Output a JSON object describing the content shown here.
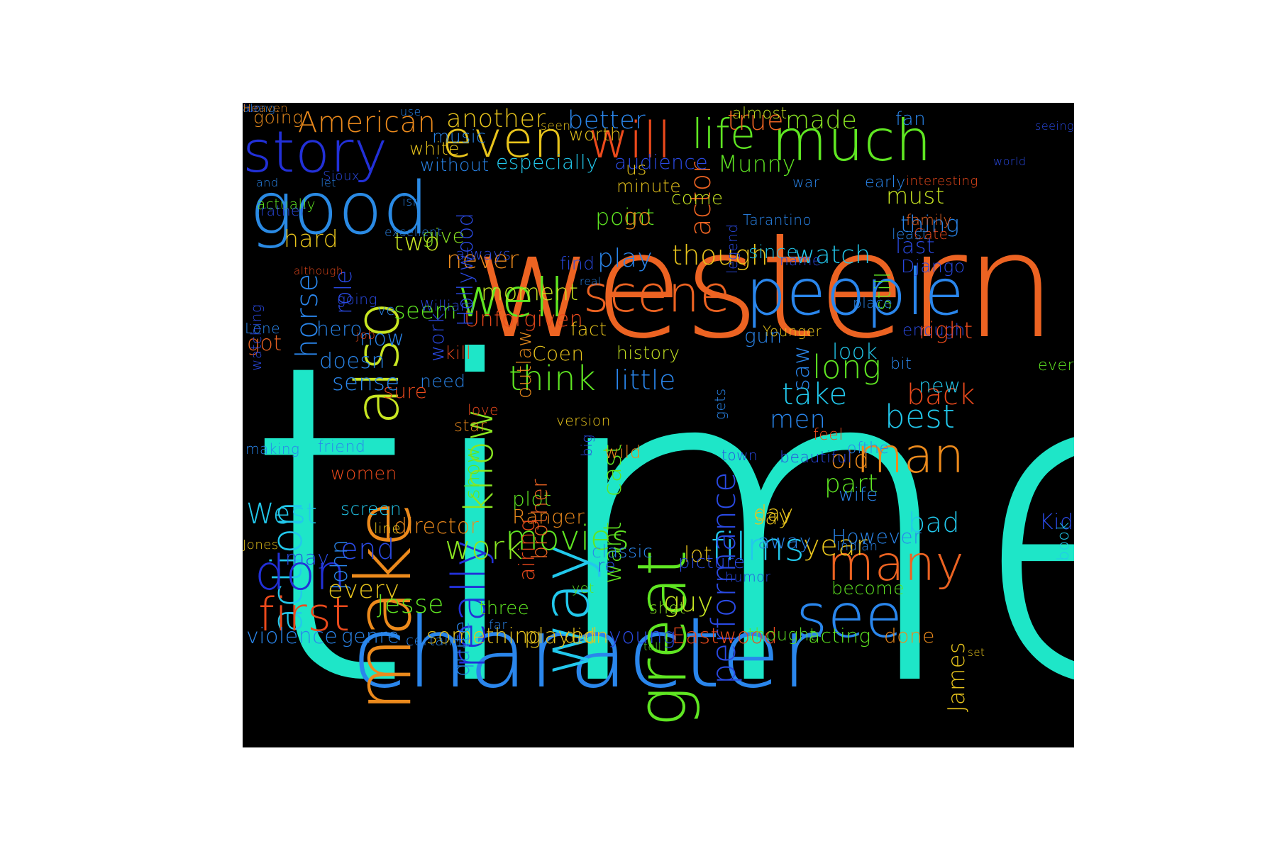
{
  "word_cloud": {
    "background": "#000000",
    "words": [
      {
        "text": "time",
        "color": "#1ee6c8"
      },
      {
        "text": "western",
        "color": "#ec6322"
      },
      {
        "text": "character",
        "color": "#2a86ec"
      },
      {
        "text": "good",
        "color": "#2a8ae4"
      },
      {
        "text": "story",
        "color": "#2230d8"
      },
      {
        "text": "even",
        "color": "#e8c41c"
      },
      {
        "text": "will",
        "color": "#ec4a1c"
      },
      {
        "text": "life",
        "color": "#5fe622"
      },
      {
        "text": "much",
        "color": "#5fe622"
      },
      {
        "text": "scene",
        "color": "#ec6322"
      },
      {
        "text": "people",
        "color": "#2a86ec"
      },
      {
        "text": "well",
        "color": "#5fe622"
      },
      {
        "text": "make",
        "color": "#ec8a1c"
      },
      {
        "text": "great",
        "color": "#5fe622"
      },
      {
        "text": "way",
        "color": "#22c8ec"
      },
      {
        "text": "really",
        "color": "#2230d8"
      },
      {
        "text": "know",
        "color": "#8ae622"
      },
      {
        "text": "action",
        "color": "#22c8ec"
      },
      {
        "text": "also",
        "color": "#c8e622"
      },
      {
        "text": "see",
        "color": "#2a86ec"
      },
      {
        "text": "man",
        "color": "#ec8a1c"
      },
      {
        "text": "many",
        "color": "#ec6322"
      },
      {
        "text": "first",
        "color": "#ec4a1c"
      },
      {
        "text": "don",
        "color": "#2230d8"
      },
      {
        "text": "films",
        "color": "#22c8ec"
      },
      {
        "text": "movies",
        "color": "#5fe622"
      },
      {
        "text": "performance",
        "color": "#2a4ae4"
      },
      {
        "text": "American",
        "color": "#ec8a1c"
      },
      {
        "text": "another",
        "color": "#e8c41c"
      },
      {
        "text": "better",
        "color": "#2a86ec"
      },
      {
        "text": "true",
        "color": "#ec6322"
      },
      {
        "text": "made",
        "color": "#8ae622"
      },
      {
        "text": "fan",
        "color": "#2a86ec"
      },
      {
        "text": "going",
        "color": "#e88a1c"
      },
      {
        "text": "actor",
        "color": "#ec6322"
      },
      {
        "text": "almost",
        "color": "#c8e622"
      },
      {
        "text": "though",
        "color": "#e8c41c"
      },
      {
        "text": "watch",
        "color": "#22c8ec"
      },
      {
        "text": "since",
        "color": "#22c8ec"
      },
      {
        "text": "play",
        "color": "#2a86ec"
      },
      {
        "text": "never",
        "color": "#ec8a1c"
      },
      {
        "text": "two",
        "color": "#c8e622"
      },
      {
        "text": "hard",
        "color": "#e8c41c"
      },
      {
        "text": "horse",
        "color": "#2a86ec"
      },
      {
        "text": "role",
        "color": "#2a4ae4"
      },
      {
        "text": "seem",
        "color": "#5fe622"
      },
      {
        "text": "now",
        "color": "#2a86ec"
      },
      {
        "text": "doesn",
        "color": "#2a86ec"
      },
      {
        "text": "think",
        "color": "#5fe622"
      },
      {
        "text": "little",
        "color": "#2a86ec"
      },
      {
        "text": "history",
        "color": "#c8e622"
      },
      {
        "text": "Coen",
        "color": "#e8c41c"
      },
      {
        "text": "long",
        "color": "#5fe622"
      },
      {
        "text": "take",
        "color": "#22c8ec"
      },
      {
        "text": "best",
        "color": "#22c8ec"
      },
      {
        "text": "back",
        "color": "#ec4a1c"
      },
      {
        "text": "new",
        "color": "#22c8ec"
      },
      {
        "text": "men",
        "color": "#2a86ec"
      },
      {
        "text": "old",
        "color": "#ec8a1c"
      },
      {
        "text": "part",
        "color": "#5fe622"
      },
      {
        "text": "West",
        "color": "#22c8ec"
      },
      {
        "text": "end",
        "color": "#2a4ae4"
      },
      {
        "text": "John",
        "color": "#2a86ec"
      },
      {
        "text": "director",
        "color": "#ec8a1c"
      },
      {
        "text": "work",
        "color": "#8ae622"
      },
      {
        "text": "Ranger",
        "color": "#ec8a1c"
      },
      {
        "text": "plot",
        "color": "#5fe622"
      },
      {
        "text": "brother",
        "color": "#ec6322"
      },
      {
        "text": "want",
        "color": "#5fe622"
      },
      {
        "text": "cast",
        "color": "#5fe622"
      },
      {
        "text": "day",
        "color": "#e8c41c"
      },
      {
        "text": "say",
        "color": "#e8c41c"
      },
      {
        "text": "year",
        "color": "#e8c41c"
      },
      {
        "text": "away",
        "color": "#2a86ec"
      },
      {
        "text": "However",
        "color": "#2a86ec"
      },
      {
        "text": "bad",
        "color": "#22c8ec"
      },
      {
        "text": "lot",
        "color": "#e8c41c"
      },
      {
        "text": "guy",
        "color": "#c8e622"
      },
      {
        "text": "every",
        "color": "#e8c41c"
      },
      {
        "text": "Jesse",
        "color": "#5fe622"
      },
      {
        "text": "three",
        "color": "#5fe622"
      },
      {
        "text": "violence",
        "color": "#2a86ec"
      },
      {
        "text": "genre",
        "color": "#2a86ec"
      },
      {
        "text": "something",
        "color": "#e8c41c"
      },
      {
        "text": "played",
        "color": "#e8c41c"
      },
      {
        "text": "didn",
        "color": "#e8c41c"
      },
      {
        "text": "young",
        "color": "#2a4ae4"
      },
      {
        "text": "Eastwood",
        "color": "#ec4a1c"
      },
      {
        "text": "thought",
        "color": "#5fe622"
      },
      {
        "text": "acting",
        "color": "#5fe622"
      },
      {
        "text": "done",
        "color": "#ec8a1c"
      },
      {
        "text": "James",
        "color": "#e8c41c"
      },
      {
        "text": "Munny",
        "color": "#5fe622"
      },
      {
        "text": "audience",
        "color": "#2a4ae4"
      },
      {
        "text": "especially",
        "color": "#22c8ec"
      },
      {
        "text": "without",
        "color": "#2a86ec"
      },
      {
        "text": "music",
        "color": "#2a86ec"
      },
      {
        "text": "white",
        "color": "#e8c41c"
      },
      {
        "text": "worth",
        "color": "#e8c41c"
      },
      {
        "text": "us",
        "color": "#e8c41c"
      },
      {
        "text": "point",
        "color": "#5fe622"
      },
      {
        "text": "come",
        "color": "#c8e622"
      },
      {
        "text": "minute",
        "color": "#e8c41c"
      },
      {
        "text": "go",
        "color": "#ec8a1c"
      },
      {
        "text": "must",
        "color": "#c8e622"
      },
      {
        "text": "thing",
        "color": "#2a86ec"
      },
      {
        "text": "last",
        "color": "#2a4ae4"
      },
      {
        "text": "Django",
        "color": "#2a4ae4"
      },
      {
        "text": "still",
        "color": "#5fe622"
      },
      {
        "text": "find",
        "color": "#2a4ae4"
      },
      {
        "text": "always",
        "color": "#2a4ae4"
      },
      {
        "text": "give",
        "color": "#8ae622"
      },
      {
        "text": "moment",
        "color": "#c8e622"
      },
      {
        "text": "Unforgiven",
        "color": "#ec4a1c"
      },
      {
        "text": "outlaw",
        "color": "#e88a1c"
      },
      {
        "text": "fact",
        "color": "#e8c41c"
      },
      {
        "text": "gun",
        "color": "#2a86ec"
      },
      {
        "text": "saw",
        "color": "#2a86ec"
      },
      {
        "text": "enough",
        "color": "#2a4ae4"
      },
      {
        "text": "right",
        "color": "#ec4a1c"
      },
      {
        "text": "look",
        "color": "#22c8ec"
      },
      {
        "text": "bit",
        "color": "#2a86ec"
      },
      {
        "text": "ever",
        "color": "#5fe622"
      },
      {
        "text": "feel",
        "color": "#ec4a1c"
      },
      {
        "text": "ofthe",
        "color": "#2a86ec"
      },
      {
        "text": "beautiful",
        "color": "#2a4ae4"
      },
      {
        "text": "wife",
        "color": "#2a86ec"
      },
      {
        "text": "Kid",
        "color": "#2a4ae4"
      },
      {
        "text": "book",
        "color": "#22c8ec"
      },
      {
        "text": "Indian",
        "color": "#2a86ec"
      },
      {
        "text": "classic",
        "color": "#2a86ec"
      },
      {
        "text": "re",
        "color": "#2a4ae4"
      },
      {
        "text": "picture",
        "color": "#2a4ae4"
      },
      {
        "text": "humor",
        "color": "#2a4ae4"
      },
      {
        "text": "become",
        "color": "#5fe622"
      },
      {
        "text": "yet",
        "color": "#5fe622"
      },
      {
        "text": "shot",
        "color": "#8ae622"
      },
      {
        "text": "far",
        "color": "#2a86ec"
      },
      {
        "text": "quite",
        "color": "#2a86ec"
      },
      {
        "text": "certainly",
        "color": "#2a86ec"
      },
      {
        "text": "set",
        "color": "#e8c41c"
      },
      {
        "text": "tell",
        "color": "#5fe622"
      },
      {
        "text": "may",
        "color": "#2a4ae4"
      },
      {
        "text": "Jones",
        "color": "#e8c41c"
      },
      {
        "text": "line",
        "color": "#e8c41c"
      },
      {
        "text": "airing",
        "color": "#ec4a1c"
      },
      {
        "text": "screen",
        "color": "#22c8ec"
      },
      {
        "text": "women",
        "color": "#ec4a1c"
      },
      {
        "text": "friend",
        "color": "#2a86ec"
      },
      {
        "text": "making",
        "color": "#2a86ec"
      },
      {
        "text": "show",
        "color": "#5fe622"
      },
      {
        "text": "star",
        "color": "#ec8a1c"
      },
      {
        "text": "love",
        "color": "#ec4a1c"
      },
      {
        "text": "version",
        "color": "#e8c41c"
      },
      {
        "text": "wild",
        "color": "#ec8a1c"
      },
      {
        "text": "big",
        "color": "#2a4ae4"
      },
      {
        "text": "town",
        "color": "#2a4ae4"
      },
      {
        "text": "gets",
        "color": "#2a86ec"
      },
      {
        "text": "Younger",
        "color": "#e8c41c"
      },
      {
        "text": "sure",
        "color": "#ec4a1c"
      },
      {
        "text": "sense",
        "color": "#2a86ec"
      },
      {
        "text": "need",
        "color": "#2a86ec"
      },
      {
        "text": "hero",
        "color": "#2a86ec"
      },
      {
        "text": "Lone",
        "color": "#2a86ec"
      },
      {
        "text": "ve",
        "color": "#2a86ec"
      },
      {
        "text": "going",
        "color": "#2a4ae4"
      },
      {
        "text": "got",
        "color": "#ec6322"
      },
      {
        "text": "watching",
        "color": "#2a4ae4"
      },
      {
        "text": "William",
        "color": "#2a4ae4"
      },
      {
        "text": "although",
        "color": "#ec4a1c"
      },
      {
        "text": "actually",
        "color": "#5fe622"
      },
      {
        "text": "job",
        "color": "#ec4a1c"
      },
      {
        "text": "excellent",
        "color": "#2a86ec"
      },
      {
        "text": "isn",
        "color": "#2a86ec"
      },
      {
        "text": "rather",
        "color": "#2a4ae4"
      },
      {
        "text": "and",
        "color": "#2a86ec"
      },
      {
        "text": "let",
        "color": "#2a86ec"
      },
      {
        "text": "Sioux",
        "color": "#2a4ae4"
      },
      {
        "text": "Hollywood",
        "color": "#2a4ae4"
      },
      {
        "text": "work",
        "color": "#2a4ae4"
      },
      {
        "text": "kill",
        "color": "#ec4a1c"
      },
      {
        "text": "real",
        "color": "#2a86ec"
      },
      {
        "text": "seen",
        "color": "#e8c41c"
      },
      {
        "text": "use",
        "color": "#2a86ec"
      },
      {
        "text": "world",
        "color": "#2a4ae4"
      },
      {
        "text": "seeing",
        "color": "#2a4ae4"
      },
      {
        "text": "interesting",
        "color": "#ec4a1c"
      },
      {
        "text": "early",
        "color": "#2a86ec"
      },
      {
        "text": "war",
        "color": "#2a86ec"
      },
      {
        "text": "legend",
        "color": "#2a4ae4"
      },
      {
        "text": "Tarantino",
        "color": "#2a86ec"
      },
      {
        "text": "family",
        "color": "#ec6322"
      },
      {
        "text": "Cate",
        "color": "#ec4a1c"
      },
      {
        "text": "least",
        "color": "#2a86ec"
      },
      {
        "text": "name",
        "color": "#2a4ae4"
      },
      {
        "text": "place",
        "color": "#2a86ec"
      },
      {
        "text": "fun",
        "color": "#2a4ae4"
      },
      {
        "text": "along",
        "color": "#2a86ec"
      },
      {
        "text": "Heaven",
        "color": "#ec8a1c"
      }
    ]
  }
}
